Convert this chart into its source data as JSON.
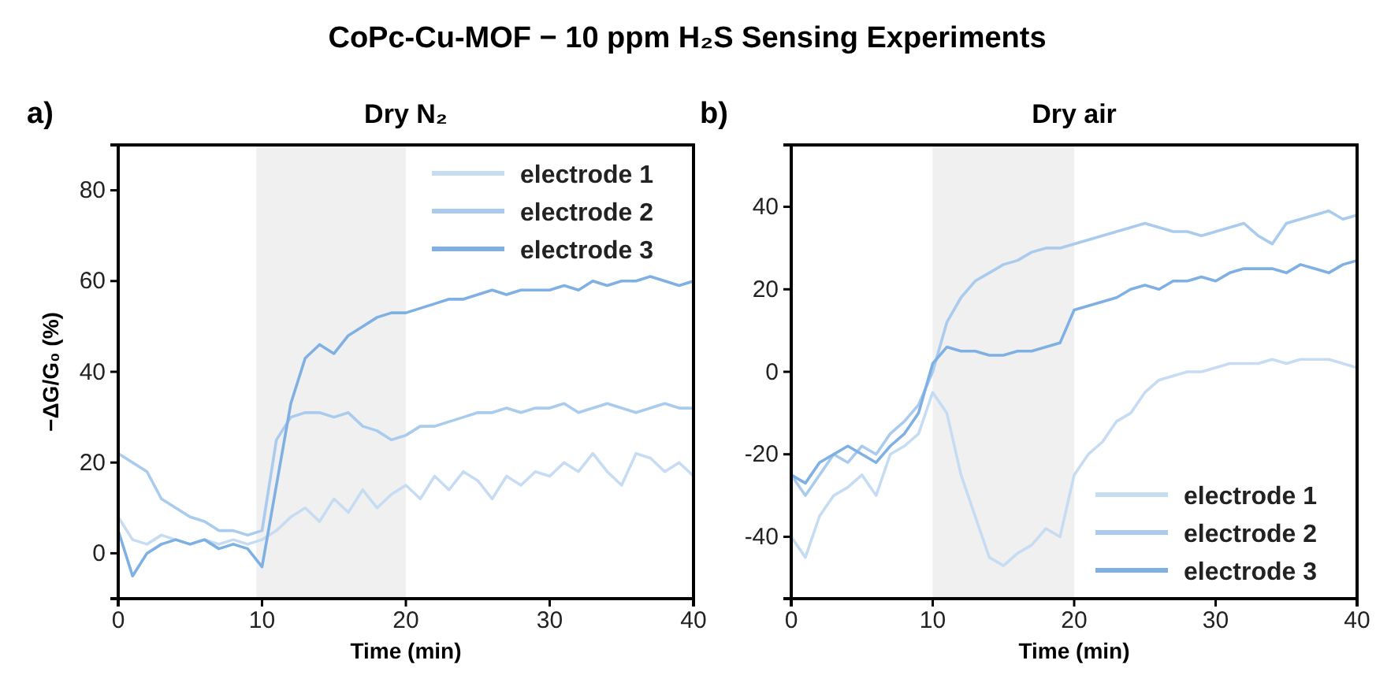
{
  "chart_data": [
    {
      "type": "line",
      "title": "Dry N₂",
      "xlabel": "Time (min)",
      "ylabel": "−ΔG/G₀ (%)",
      "annotations": [
        "CoPc-Cu-MOF − 10 ppm H₂S Sensing Experiments",
        "a)"
      ],
      "x": [
        0,
        1,
        2,
        3,
        4,
        5,
        6,
        7,
        8,
        9,
        10,
        11,
        12,
        13,
        14,
        15,
        16,
        17,
        18,
        19,
        20,
        21,
        22,
        23,
        24,
        25,
        26,
        27,
        28,
        29,
        30,
        31,
        32,
        33,
        34,
        35,
        36,
        37,
        38,
        39,
        40
      ],
      "series": [
        {
          "name": "electrode 1",
          "color": "#c6dcf2",
          "values": [
            8,
            3,
            2,
            4,
            3,
            2,
            3,
            2,
            3,
            2,
            3,
            5,
            8,
            10,
            7,
            12,
            9,
            14,
            10,
            13,
            15,
            12,
            17,
            14,
            18,
            16,
            12,
            17,
            15,
            18,
            17,
            20,
            18,
            22,
            18,
            15,
            22,
            21,
            18,
            20,
            17
          ]
        },
        {
          "name": "electrode 2",
          "color": "#a9cbee",
          "values": [
            22,
            20,
            18,
            12,
            10,
            8,
            7,
            5,
            5,
            4,
            5,
            25,
            30,
            31,
            31,
            30,
            31,
            28,
            27,
            25,
            26,
            28,
            28,
            29,
            30,
            31,
            31,
            32,
            31,
            32,
            32,
            33,
            31,
            32,
            33,
            32,
            31,
            32,
            33,
            32,
            32
          ]
        },
        {
          "name": "electrode 3",
          "color": "#7fb0e4",
          "values": [
            5,
            -5,
            0,
            2,
            3,
            2,
            3,
            1,
            2,
            1,
            -3,
            15,
            33,
            43,
            46,
            44,
            48,
            50,
            52,
            53,
            53,
            54,
            55,
            56,
            56,
            57,
            58,
            57,
            58,
            58,
            58,
            59,
            58,
            60,
            59,
            60,
            60,
            61,
            60,
            59,
            60
          ]
        }
      ],
      "xlim": [
        0,
        40
      ],
      "xticks": [
        0,
        10,
        20,
        30,
        40
      ],
      "ylim": [
        -10,
        90
      ],
      "yticks": [
        0,
        20,
        40,
        60,
        80
      ],
      "bands": [
        {
          "axis": "x",
          "from": 9.6,
          "to": 20,
          "color": "#f0f0f0"
        }
      ],
      "legend": "top right",
      "grid": false,
      "marker": "none",
      "line_style": "solid"
    },
    {
      "type": "line",
      "title": "Dry air",
      "xlabel": "Time (min)",
      "annotations": [
        "b)"
      ],
      "x": [
        0,
        1,
        2,
        3,
        4,
        5,
        6,
        7,
        8,
        9,
        10,
        11,
        12,
        13,
        14,
        15,
        16,
        17,
        18,
        19,
        20,
        21,
        22,
        23,
        24,
        25,
        26,
        27,
        28,
        29,
        30,
        31,
        32,
        33,
        34,
        35,
        36,
        37,
        38,
        39,
        40
      ],
      "series": [
        {
          "name": "electrode 1",
          "color": "#c6dcf2",
          "values": [
            -40,
            -45,
            -35,
            -30,
            -28,
            -25,
            -30,
            -20,
            -18,
            -15,
            -5,
            -10,
            -25,
            -35,
            -45,
            -47,
            -44,
            -42,
            -38,
            -40,
            -25,
            -20,
            -17,
            -12,
            -10,
            -5,
            -2,
            -1,
            0,
            0,
            1,
            2,
            2,
            2,
            3,
            2,
            3,
            3,
            3,
            2,
            1
          ]
        },
        {
          "name": "electrode 2",
          "color": "#a9cbee",
          "values": [
            -25,
            -30,
            -25,
            -20,
            -22,
            -18,
            -20,
            -15,
            -12,
            -8,
            0,
            12,
            18,
            22,
            24,
            26,
            27,
            29,
            30,
            30,
            31,
            32,
            33,
            34,
            35,
            36,
            35,
            34,
            34,
            33,
            34,
            35,
            36,
            33,
            31,
            36,
            37,
            38,
            39,
            37,
            38
          ]
        },
        {
          "name": "electrode 3",
          "color": "#7fb0e4",
          "values": [
            -25,
            -27,
            -22,
            -20,
            -18,
            -20,
            -22,
            -18,
            -15,
            -10,
            2,
            6,
            5,
            5,
            4,
            4,
            5,
            5,
            6,
            7,
            15,
            16,
            17,
            18,
            20,
            21,
            20,
            22,
            22,
            23,
            22,
            24,
            25,
            25,
            25,
            24,
            26,
            25,
            24,
            26,
            27
          ]
        }
      ],
      "xlim": [
        0,
        40
      ],
      "xticks": [
        0,
        10,
        20,
        30,
        40
      ],
      "ylim": [
        -55,
        55
      ],
      "yticks": [
        -40,
        -20,
        0,
        20,
        40
      ],
      "bands": [
        {
          "axis": "x",
          "from": 10,
          "to": 20,
          "color": "#f0f0f0"
        }
      ],
      "legend": "bottom right",
      "grid": false,
      "marker": "none",
      "line_style": "solid"
    }
  ]
}
